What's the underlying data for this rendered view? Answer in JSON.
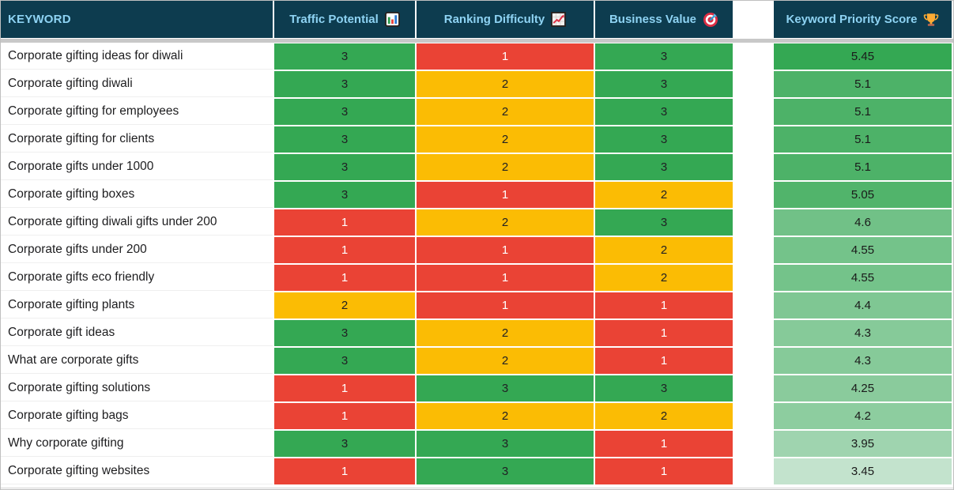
{
  "table": {
    "columns": [
      {
        "label": "KEYWORD",
        "icon": ""
      },
      {
        "label": "Traffic Potential",
        "icon": "bar-chart"
      },
      {
        "label": "Ranking Difficulty",
        "icon": "chart-increasing"
      },
      {
        "label": "Business Value",
        "icon": "target"
      },
      {
        "label": "Keyword Priority Score",
        "icon": "trophy"
      }
    ],
    "rows": [
      {
        "keyword": "Corporate gifting ideas for diwali",
        "traffic_potential": 3,
        "ranking_difficulty": 1,
        "business_value": 3,
        "priority_score": "5.45",
        "score_color": "#34a853"
      },
      {
        "keyword": "Corporate gifting diwali",
        "traffic_potential": 3,
        "ranking_difficulty": 2,
        "business_value": 3,
        "priority_score": "5.1",
        "score_color": "#4db268"
      },
      {
        "keyword": "Corporate gifting for employees",
        "traffic_potential": 3,
        "ranking_difficulty": 2,
        "business_value": 3,
        "priority_score": "5.1",
        "score_color": "#4db268"
      },
      {
        "keyword": "Corporate gifting for clients",
        "traffic_potential": 3,
        "ranking_difficulty": 2,
        "business_value": 3,
        "priority_score": "5.1",
        "score_color": "#4db268"
      },
      {
        "keyword": "Corporate gifts under 1000",
        "traffic_potential": 3,
        "ranking_difficulty": 2,
        "business_value": 3,
        "priority_score": "5.1",
        "score_color": "#4db268"
      },
      {
        "keyword": "Corporate gifting boxes",
        "traffic_potential": 3,
        "ranking_difficulty": 1,
        "business_value": 2,
        "priority_score": "5.05",
        "score_color": "#51b46b"
      },
      {
        "keyword": "Corporate gifting diwali gifts under 200",
        "traffic_potential": 1,
        "ranking_difficulty": 2,
        "business_value": 3,
        "priority_score": "4.6",
        "score_color": "#71c187"
      },
      {
        "keyword": "Corporate gifts under 200",
        "traffic_potential": 1,
        "ranking_difficulty": 1,
        "business_value": 2,
        "priority_score": "4.55",
        "score_color": "#74c38a"
      },
      {
        "keyword": "Corporate gifts eco friendly",
        "traffic_potential": 1,
        "ranking_difficulty": 1,
        "business_value": 2,
        "priority_score": "4.55",
        "score_color": "#74c38a"
      },
      {
        "keyword": "Corporate gifting plants",
        "traffic_potential": 2,
        "ranking_difficulty": 1,
        "business_value": 1,
        "priority_score": "4.4",
        "score_color": "#7fc793"
      },
      {
        "keyword": "Corporate gift ideas",
        "traffic_potential": 3,
        "ranking_difficulty": 2,
        "business_value": 1,
        "priority_score": "4.3",
        "score_color": "#86ca99"
      },
      {
        "keyword": "What are corporate gifts",
        "traffic_potential": 3,
        "ranking_difficulty": 2,
        "business_value": 1,
        "priority_score": "4.3",
        "score_color": "#86ca99"
      },
      {
        "keyword": "Corporate gifting solutions",
        "traffic_potential": 1,
        "ranking_difficulty": 3,
        "business_value": 3,
        "priority_score": "4.25",
        "score_color": "#8acb9c"
      },
      {
        "keyword": "Corporate gifting bags",
        "traffic_potential": 1,
        "ranking_difficulty": 2,
        "business_value": 2,
        "priority_score": "4.2",
        "score_color": "#8dcd9f"
      },
      {
        "keyword": "Why corporate gifting",
        "traffic_potential": 3,
        "ranking_difficulty": 3,
        "business_value": 1,
        "priority_score": "3.95",
        "score_color": "#9fd4af"
      },
      {
        "keyword": "Corporate gifting websites",
        "traffic_potential": 1,
        "ranking_difficulty": 3,
        "business_value": 1,
        "priority_score": "3.45",
        "score_color": "#c3e3cd"
      }
    ]
  },
  "colors": {
    "header_bg": "#0d3c4f",
    "header_text": "#8ed3f3",
    "divider": "#c8c8c8",
    "keyword_text": "#1d1d1f",
    "score_text": "#1a1a1a",
    "value_bg": {
      "1": "#ea4335",
      "2": "#fbbc04",
      "3": "#34a853"
    },
    "value_text": {
      "1": "#ffffff",
      "2": "#202124",
      "3": "#202124"
    }
  }
}
